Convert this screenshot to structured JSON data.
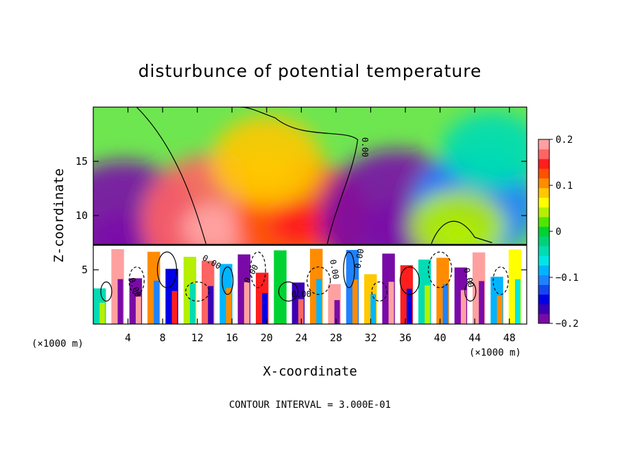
{
  "chart_data": {
    "type": "heatmap",
    "title": "disturbunce of potential temperature",
    "xlabel": "X-coordinate",
    "ylabel": "Z-coordinate",
    "x_unit_left": "(×1000 m)",
    "x_unit_right": "(×1000 m)",
    "footer": "CONTOUR INTERVAL = 3.000E-01",
    "xlim": [
      0,
      50
    ],
    "ylim": [
      0,
      20
    ],
    "x_ticks": [
      4,
      8,
      12,
      16,
      20,
      24,
      28,
      32,
      36,
      40,
      44,
      48
    ],
    "y_ticks": [
      5,
      10,
      15
    ],
    "colorbar": {
      "min": -0.2,
      "max": 0.2,
      "ticks": [
        0.2,
        0.1,
        0,
        -0.1,
        -0.2
      ],
      "tick_labels": [
        "0.2",
        "0.1",
        "0",
        "−0.1",
        "−0.2"
      ],
      "colors": [
        "#7a0aa8",
        "#3a00b4",
        "#0000e6",
        "#1446f0",
        "#1e82ff",
        "#00b4ff",
        "#00e6e6",
        "#00dcb4",
        "#00d278",
        "#00d232",
        "#50e600",
        "#b4f000",
        "#ffff00",
        "#ffc800",
        "#ff8c00",
        "#ff5000",
        "#ff1e1e",
        "#ff6464",
        "#ffa0a0"
      ]
    },
    "contour_labels": [
      "0.00",
      "0.00",
      "0.00",
      "0.00",
      "0.00",
      "0.00",
      "0.00",
      "0.00"
    ],
    "anomalies_upper": [
      {
        "x": 3.5,
        "z": 8.5,
        "value": -0.2
      },
      {
        "x": 14,
        "z": 9.5,
        "value": 0.18
      },
      {
        "x": 24,
        "z": 9.8,
        "value": 0.14
      },
      {
        "x": 35,
        "z": 9.5,
        "value": -0.2
      },
      {
        "x": 44,
        "z": 11,
        "value": -0.12
      },
      {
        "x": 42,
        "z": 9,
        "value": 0.04
      },
      {
        "x": 20,
        "z": 15,
        "value": 0.08
      },
      {
        "x": 46,
        "z": 16,
        "value": -0.05
      }
    ]
  }
}
